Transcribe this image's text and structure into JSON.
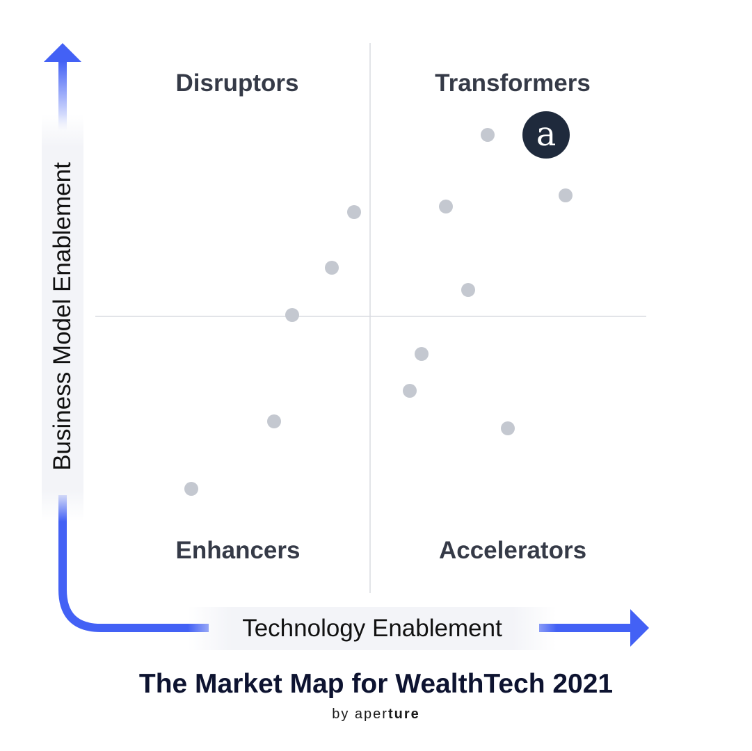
{
  "quadrants": {
    "top_left": "Disruptors",
    "top_right": "Transformers",
    "bottom_left": "Enhancers",
    "bottom_right": "Accelerators"
  },
  "axes": {
    "x_label": "Technology Enablement",
    "y_label": "Business Model Enablement"
  },
  "highlight_marker": {
    "letter": "a",
    "color": "#1f2a3c",
    "text_color": "#ffffff"
  },
  "colors": {
    "axis_arrow": "#4361f5",
    "dot": "#c4c8d0",
    "divider": "#d9dbe0",
    "quadrant_text": "#353a47"
  },
  "footer": {
    "title": "The Market Map for WealthTech 2021",
    "byline_prefix": "by",
    "brand_light": "aper",
    "brand_bold": "ture"
  }
}
